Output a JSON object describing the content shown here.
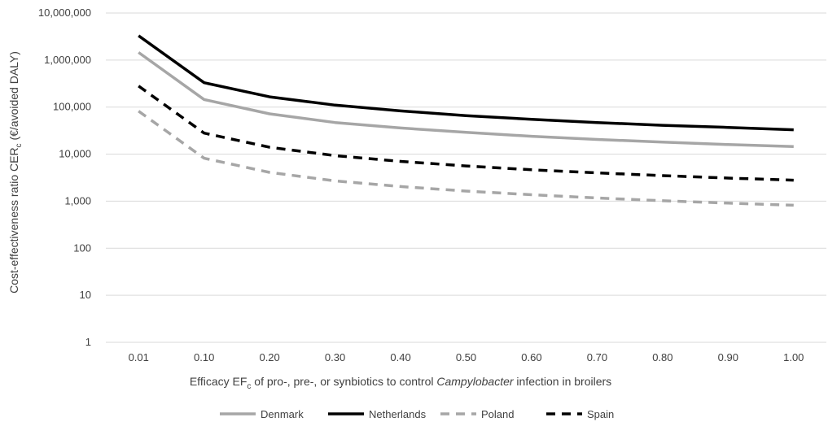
{
  "chart_data": {
    "type": "line",
    "x": [
      "0.01",
      "0.10",
      "0.20",
      "0.30",
      "0.40",
      "0.50",
      "0.60",
      "0.70",
      "0.80",
      "0.90",
      "1.00"
    ],
    "y_scale": "log",
    "ylim": [
      1,
      10000000
    ],
    "y_ticks": [
      "1",
      "10",
      "100",
      "1,000",
      "10,000",
      "100,000",
      "1,000,000",
      "10,000,000"
    ],
    "y_tick_values": [
      1,
      10,
      100,
      1000,
      10000,
      100000,
      1000000,
      10000000
    ],
    "grid": "horizontal",
    "legend_position": "bottom",
    "xlabel": {
      "pre": "Efficacy EF",
      "sub": "c",
      "mid": " of pro-, pre-, or synbiotics to control ",
      "italic": "Campylobacter",
      "post": " infection in broilers"
    },
    "ylabel": {
      "pre": "Cost-effectiveness ratio CER",
      "sub": "c",
      "post": " (€/avoided DALY)"
    },
    "series": [
      {
        "name": "Denmark",
        "color": "#a6a6a6",
        "dash": "solid",
        "values": [
          1450000,
          145000,
          72000,
          47000,
          36000,
          29000,
          24000,
          20500,
          18000,
          16000,
          14500
        ]
      },
      {
        "name": "Netherlands",
        "color": "#000000",
        "dash": "solid",
        "values": [
          3300000,
          330000,
          165000,
          110000,
          83000,
          66000,
          55000,
          47000,
          41000,
          37000,
          33000
        ]
      },
      {
        "name": "Poland",
        "color": "#a6a6a6",
        "dash": "dashed",
        "values": [
          82000,
          8200,
          4100,
          2700,
          2050,
          1640,
          1370,
          1170,
          1020,
          910,
          820
        ]
      },
      {
        "name": "Spain",
        "color": "#000000",
        "dash": "dashed",
        "values": [
          280000,
          28000,
          14000,
          9300,
          7000,
          5600,
          4650,
          4000,
          3500,
          3100,
          2800
        ]
      }
    ]
  }
}
